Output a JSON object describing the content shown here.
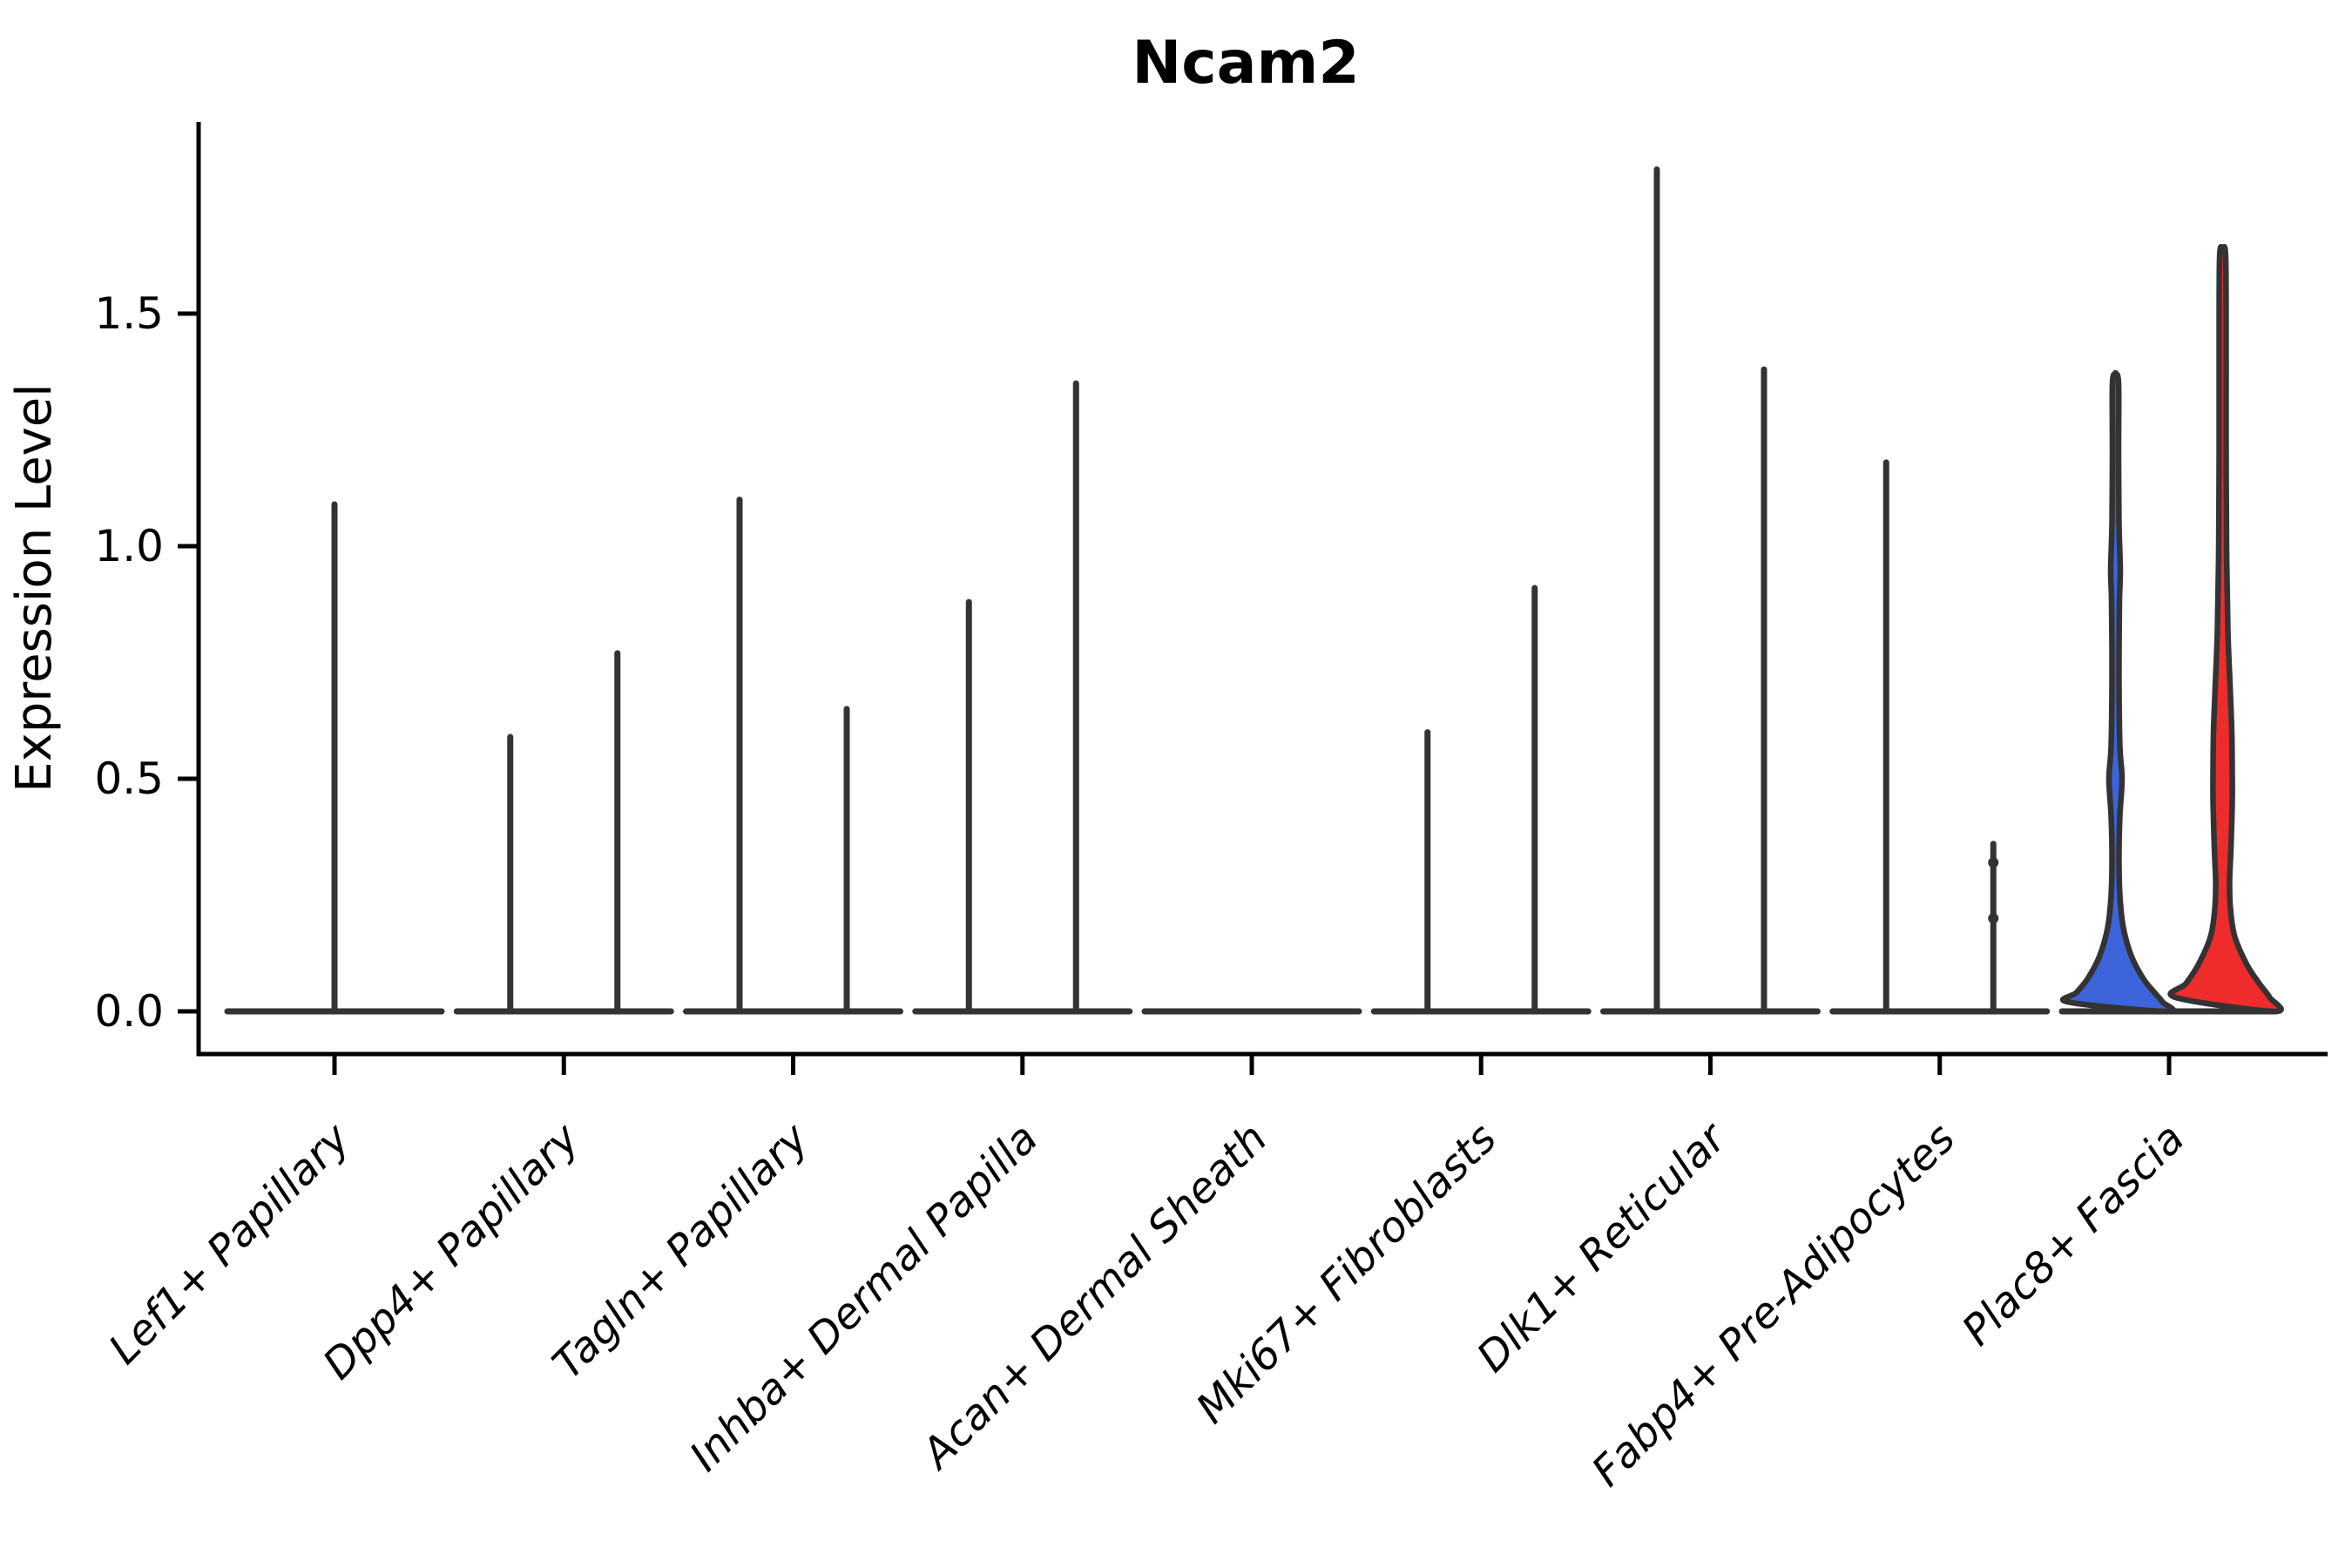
{
  "figure": {
    "title": "Ncam2",
    "ylabel": "Expression Level",
    "outline_color": "#333333",
    "axis_color": "#000000"
  },
  "chart_data": {
    "type": "violin",
    "title": "Ncam2",
    "xlabel": "",
    "ylabel": "Expression Level",
    "ylim": [
      -0.09,
      1.91
    ],
    "grid": false,
    "legend": "none",
    "ytick_labels": [
      "0.0",
      "0.5",
      "1.0",
      "1.5"
    ],
    "ytick_values": [
      0,
      0.5,
      1.0,
      1.5
    ],
    "group_colors": {
      "left": "#3D64DB",
      "right": "#EE2C2C"
    },
    "outline_color": "#333333",
    "categories": [
      {
        "label": "Lef1+ Papillary",
        "violins": [
          {
            "group": "center",
            "layout": "full",
            "max": 1.09,
            "fill": null
          }
        ]
      },
      {
        "label": "Dpp4+ Papillary",
        "violins": [
          {
            "group": "left",
            "max": 0.59,
            "fill": null
          },
          {
            "group": "right",
            "max": 0.77,
            "fill": null
          }
        ]
      },
      {
        "label": "Tagln+ Papillary",
        "violins": [
          {
            "group": "left",
            "max": 1.1,
            "fill": null
          },
          {
            "group": "right",
            "max": 0.65,
            "fill": null
          }
        ]
      },
      {
        "label": "Inhba+ Dermal Papilla",
        "violins": [
          {
            "group": "left",
            "max": 0.88,
            "fill": null
          },
          {
            "group": "right",
            "max": 1.35,
            "fill": null
          }
        ]
      },
      {
        "label": "Acan+ Dermal Sheath",
        "violins": [
          {
            "group": "left",
            "max": 0,
            "fill": null
          },
          {
            "group": "right",
            "max": 0,
            "fill": null
          }
        ]
      },
      {
        "label": "Mki67+ Fibroblasts",
        "violins": [
          {
            "group": "left",
            "max": 0.6,
            "fill": null
          },
          {
            "group": "right",
            "max": 0.91,
            "fill": null
          }
        ]
      },
      {
        "label": "Dlk1+ Reticular",
        "violins": [
          {
            "group": "left",
            "max": 1.81,
            "fill": null
          },
          {
            "group": "right",
            "max": 1.38,
            "fill": null
          }
        ]
      },
      {
        "label": "Fabp4+ Pre-Adipocytes",
        "violins": [
          {
            "group": "left",
            "max": 1.18,
            "fill": null
          },
          {
            "group": "right",
            "max": 0.36,
            "fill": null,
            "bumps": [
              0.32,
              0.2
            ]
          }
        ]
      },
      {
        "label": "Plac8+ Fascia",
        "violins": [
          {
            "group": "left",
            "max": 1.37,
            "fill": "#3D64DB",
            "profile": [
              [
                1.37,
                0
              ],
              [
                1.35,
                3.5
              ],
              [
                1.2,
                3.5
              ],
              [
                1.05,
                4
              ],
              [
                0.95,
                5.5
              ],
              [
                0.88,
                4.5
              ],
              [
                0.72,
                4
              ],
              [
                0.57,
                5
              ],
              [
                0.5,
                7.5
              ],
              [
                0.42,
                5
              ],
              [
                0.33,
                4
              ],
              [
                0.25,
                5
              ],
              [
                0.18,
                9
              ],
              [
                0.12,
                18
              ],
              [
                0.07,
                32
              ],
              [
                0.04,
                45
              ],
              [
                0.02,
                54
              ],
              [
                0.0,
                59
              ]
            ]
          },
          {
            "group": "right",
            "max": 1.64,
            "fill": "#EE2C2C",
            "profile": [
              [
                1.64,
                0
              ],
              [
                1.62,
                3.5
              ],
              [
                1.4,
                4
              ],
              [
                1.2,
                4
              ],
              [
                1.0,
                4.5
              ],
              [
                0.82,
                6
              ],
              [
                0.7,
                8.5
              ],
              [
                0.6,
                10.5
              ],
              [
                0.52,
                11
              ],
              [
                0.45,
                11
              ],
              [
                0.35,
                9.5
              ],
              [
                0.28,
                8
              ],
              [
                0.22,
                9
              ],
              [
                0.16,
                14
              ],
              [
                0.1,
                28
              ],
              [
                0.06,
                42
              ],
              [
                0.03,
                54
              ],
              [
                0.0,
                60
              ]
            ]
          }
        ]
      }
    ]
  }
}
